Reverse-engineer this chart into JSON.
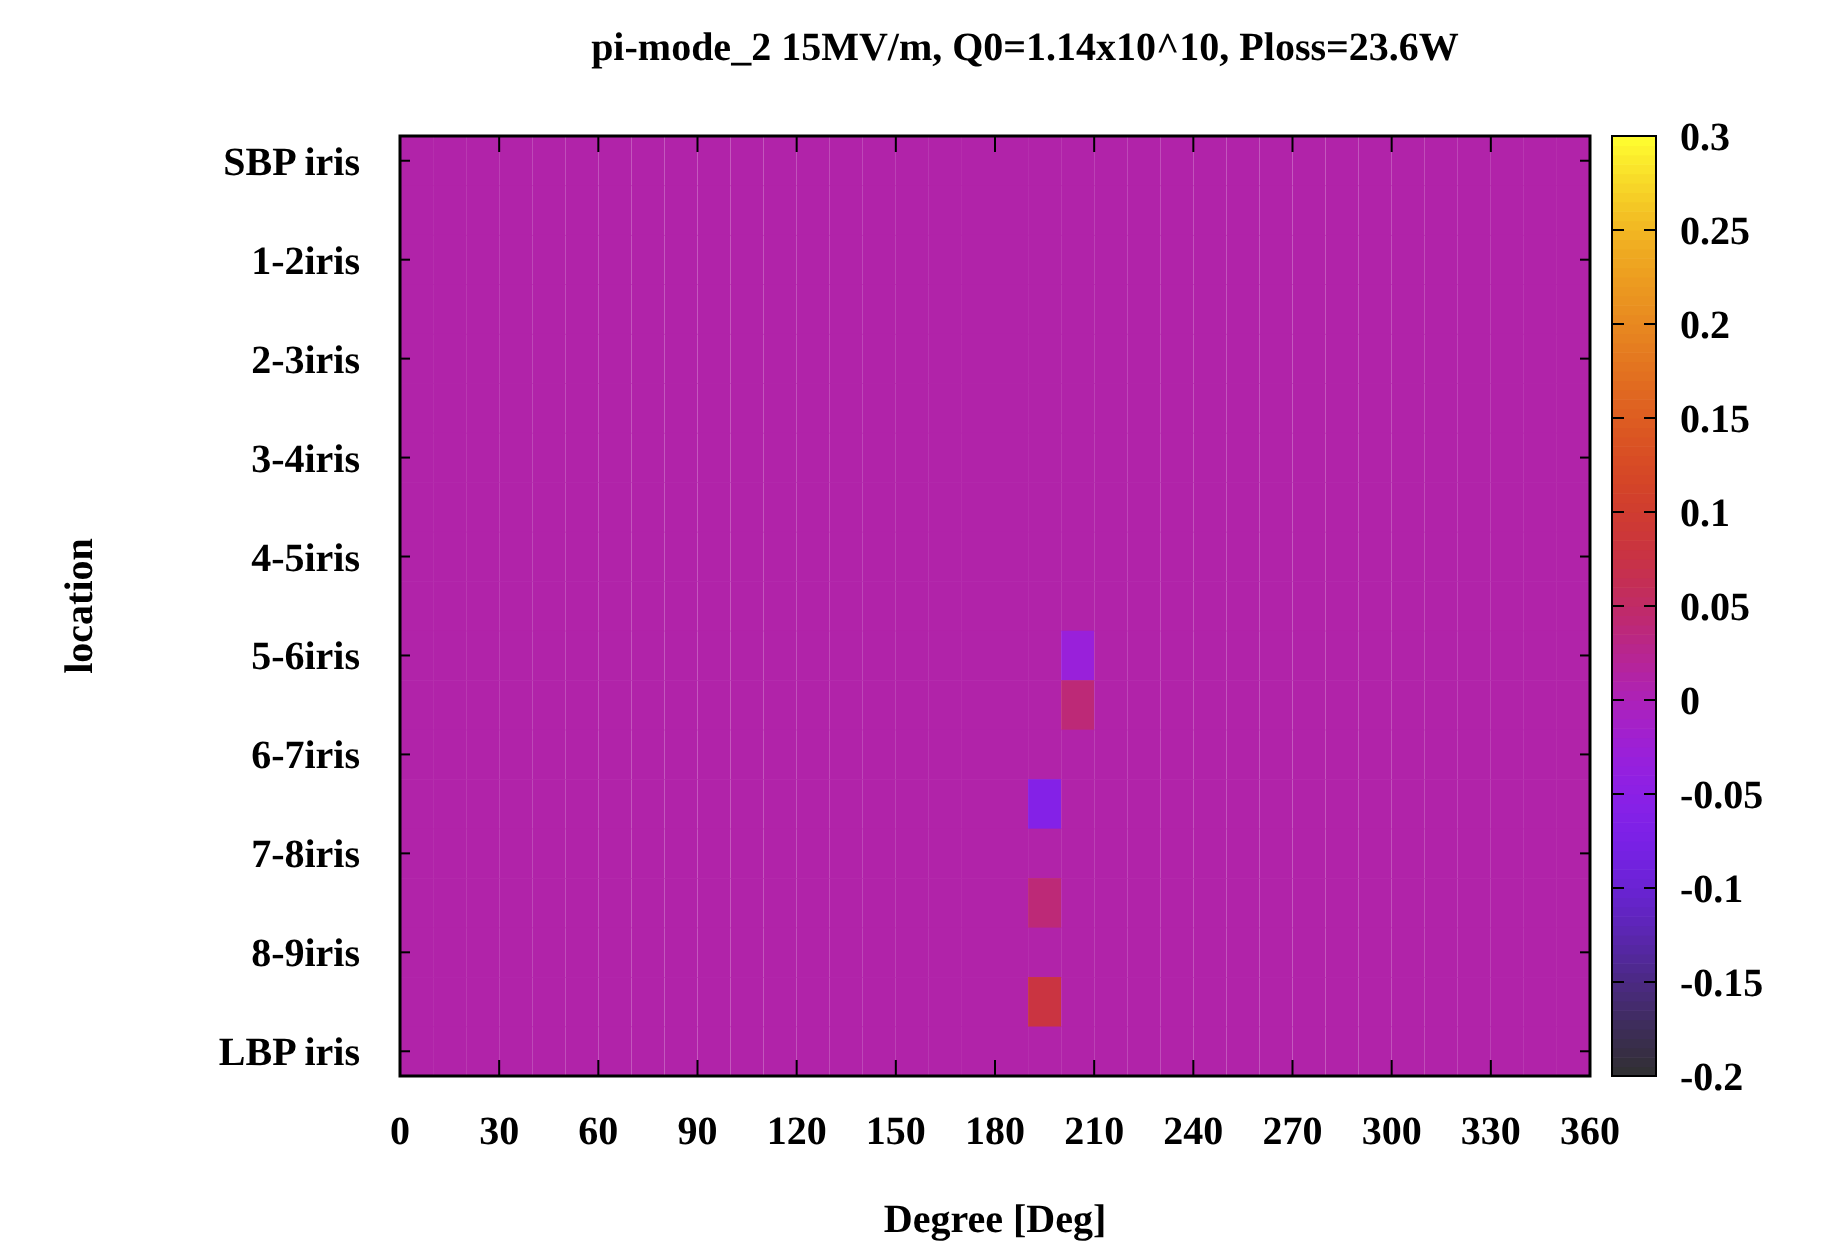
{
  "chart_data": {
    "type": "heatmap",
    "title": "pi-mode_2 15MV/m, Q0=1.14x10^10, Ploss=23.6W",
    "xlabel": "Degree [Deg]",
    "ylabel": "location",
    "x": [
      5,
      15,
      25,
      35,
      45,
      55,
      65,
      75,
      85,
      95,
      105,
      115,
      125,
      135,
      145,
      155,
      165,
      175,
      185,
      195,
      205,
      215,
      225,
      235,
      245,
      255,
      265,
      275,
      285,
      295,
      305,
      315,
      325,
      335,
      345,
      355
    ],
    "y_categories": [
      "SBP iris",
      null,
      "1-2iris",
      null,
      "2-3iris",
      null,
      "3-4iris",
      null,
      "4-5iris",
      null,
      "5-6iris",
      null,
      "6-7iris",
      null,
      "7-8iris",
      null,
      "8-9iris",
      null,
      "LBP iris"
    ],
    "cells": [
      [
        0.01,
        0.01,
        0.01,
        0.01,
        0.01,
        0.01,
        0.01,
        0.01,
        0.01,
        0.01,
        0.01,
        0.01,
        0.01,
        0.01,
        0.01,
        0.01,
        0.01,
        0.01,
        0.01,
        0.01,
        0.01,
        0.01,
        0.01,
        0.01,
        0.01,
        0.01,
        0.01,
        0.01,
        0.01,
        0.01,
        0.01,
        0.01,
        0.01,
        0.01,
        0.01,
        0.01
      ],
      [
        0.01,
        0.01,
        0.01,
        0.01,
        0.01,
        0.01,
        0.01,
        0.01,
        0.01,
        0.01,
        0.01,
        0.01,
        0.01,
        0.01,
        0.01,
        0.01,
        0.01,
        0.01,
        0.01,
        0.01,
        0.01,
        0.01,
        0.01,
        0.01,
        0.01,
        0.01,
        0.01,
        0.01,
        0.01,
        0.01,
        0.01,
        0.01,
        0.01,
        0.01,
        0.01,
        0.01
      ],
      [
        0.01,
        0.01,
        0.01,
        0.01,
        0.01,
        0.01,
        0.01,
        0.01,
        0.01,
        0.01,
        0.01,
        0.01,
        0.01,
        0.01,
        0.01,
        0.01,
        0.01,
        0.01,
        0.01,
        0.01,
        0.01,
        0.01,
        0.01,
        0.01,
        0.01,
        0.01,
        0.01,
        0.01,
        0.01,
        0.01,
        0.01,
        0.01,
        0.01,
        0.01,
        0.01,
        0.01
      ],
      [
        0.01,
        0.01,
        0.01,
        0.01,
        0.01,
        0.01,
        0.01,
        0.01,
        0.01,
        0.01,
        0.01,
        0.01,
        0.01,
        0.01,
        0.01,
        0.01,
        0.01,
        0.01,
        0.01,
        0.01,
        0.01,
        0.01,
        0.01,
        0.01,
        0.01,
        0.01,
        0.01,
        0.01,
        0.01,
        0.01,
        0.01,
        0.01,
        0.01,
        0.01,
        0.01,
        0.01
      ],
      [
        0.01,
        0.01,
        0.01,
        0.01,
        0.01,
        0.01,
        0.01,
        0.01,
        0.01,
        0.01,
        0.01,
        0.01,
        0.01,
        0.01,
        0.01,
        0.01,
        0.01,
        0.01,
        0.01,
        0.01,
        0.01,
        0.01,
        0.01,
        0.01,
        0.01,
        0.01,
        0.01,
        0.01,
        0.01,
        0.01,
        0.01,
        0.01,
        0.01,
        0.01,
        0.01,
        0.01
      ],
      [
        0.01,
        0.01,
        0.01,
        0.01,
        0.01,
        0.01,
        0.01,
        0.01,
        0.01,
        0.01,
        0.01,
        0.01,
        0.01,
        0.01,
        0.01,
        0.01,
        0.01,
        0.01,
        0.01,
        0.01,
        0.01,
        0.01,
        0.01,
        0.01,
        0.01,
        0.01,
        0.01,
        0.01,
        0.01,
        0.01,
        0.01,
        0.01,
        0.01,
        0.01,
        0.01,
        0.01
      ],
      [
        0.01,
        0.01,
        0.01,
        0.01,
        0.01,
        0.01,
        0.01,
        0.01,
        0.01,
        0.01,
        0.01,
        0.01,
        0.01,
        0.01,
        0.01,
        0.01,
        0.01,
        0.01,
        0.01,
        0.01,
        0.01,
        0.01,
        0.01,
        0.01,
        0.01,
        0.01,
        0.01,
        0.01,
        0.01,
        0.01,
        0.01,
        0.01,
        0.01,
        0.01,
        0.01,
        0.01
      ],
      [
        0.01,
        0.01,
        0.01,
        0.01,
        0.01,
        0.01,
        0.01,
        0.01,
        0.01,
        0.01,
        0.01,
        0.01,
        0.01,
        0.01,
        0.01,
        0.01,
        0.01,
        0.01,
        0.01,
        0.01,
        0.01,
        0.01,
        0.01,
        0.01,
        0.01,
        0.01,
        0.01,
        0.01,
        0.01,
        0.01,
        0.01,
        0.01,
        0.01,
        0.01,
        0.01,
        0.01
      ],
      [
        0.01,
        0.01,
        0.01,
        0.01,
        0.01,
        0.01,
        0.01,
        0.01,
        0.01,
        0.01,
        0.01,
        0.01,
        0.01,
        0.01,
        0.01,
        0.01,
        0.01,
        0.01,
        0.01,
        0.01,
        0.01,
        0.01,
        0.01,
        0.01,
        0.01,
        0.01,
        0.01,
        0.01,
        0.01,
        0.01,
        0.01,
        0.01,
        0.01,
        0.01,
        0.01,
        0.01
      ],
      [
        0.01,
        0.01,
        0.01,
        0.01,
        0.01,
        0.01,
        0.01,
        0.01,
        0.01,
        0.01,
        0.01,
        0.01,
        0.01,
        0.01,
        0.01,
        0.01,
        0.01,
        0.01,
        0.01,
        0.01,
        0.01,
        0.01,
        0.01,
        0.01,
        0.01,
        0.01,
        0.01,
        0.01,
        0.01,
        0.01,
        0.01,
        0.01,
        0.01,
        0.01,
        0.01,
        0.01
      ],
      [
        0.01,
        0.01,
        0.01,
        0.01,
        0.01,
        0.01,
        0.01,
        0.01,
        0.01,
        0.01,
        0.01,
        0.01,
        0.01,
        0.01,
        0.01,
        0.01,
        0.01,
        0.01,
        0.01,
        0.01,
        -0.03,
        0.01,
        0.01,
        0.01,
        0.01,
        0.01,
        0.01,
        0.01,
        0.01,
        0.01,
        0.01,
        0.01,
        0.01,
        0.01,
        0.01,
        0.01
      ],
      [
        0.01,
        0.01,
        0.01,
        0.01,
        0.01,
        0.01,
        0.01,
        0.01,
        0.01,
        0.01,
        0.01,
        0.01,
        0.01,
        0.01,
        0.01,
        0.01,
        0.01,
        0.01,
        0.01,
        0.01,
        0.04,
        0.01,
        0.01,
        0.01,
        0.01,
        0.01,
        0.01,
        0.01,
        0.01,
        0.01,
        0.01,
        0.01,
        0.01,
        0.01,
        0.01,
        0.01
      ],
      [
        0.01,
        0.01,
        0.01,
        0.01,
        0.01,
        0.01,
        0.01,
        0.01,
        0.01,
        0.01,
        0.01,
        0.01,
        0.01,
        0.01,
        0.01,
        0.01,
        0.01,
        0.01,
        0.01,
        0.01,
        0.01,
        0.01,
        0.01,
        0.01,
        0.01,
        0.01,
        0.01,
        0.01,
        0.01,
        0.01,
        0.01,
        0.01,
        0.01,
        0.01,
        0.01,
        0.01
      ],
      [
        0.01,
        0.01,
        0.01,
        0.01,
        0.01,
        0.01,
        0.01,
        0.01,
        0.01,
        0.01,
        0.01,
        0.01,
        0.01,
        0.01,
        0.01,
        0.01,
        0.01,
        0.01,
        0.01,
        -0.06,
        0.01,
        0.01,
        0.01,
        0.01,
        0.01,
        0.01,
        0.01,
        0.01,
        0.01,
        0.01,
        0.01,
        0.01,
        0.01,
        0.01,
        0.01,
        0.01
      ],
      [
        0.01,
        0.01,
        0.01,
        0.01,
        0.01,
        0.01,
        0.01,
        0.01,
        0.01,
        0.01,
        0.01,
        0.01,
        0.01,
        0.01,
        0.01,
        0.01,
        0.01,
        0.01,
        0.01,
        0.01,
        0.01,
        0.01,
        0.01,
        0.01,
        0.01,
        0.01,
        0.01,
        0.01,
        0.01,
        0.01,
        0.01,
        0.01,
        0.01,
        0.01,
        0.01,
        0.01
      ],
      [
        0.01,
        0.01,
        0.01,
        0.01,
        0.01,
        0.01,
        0.01,
        0.01,
        0.01,
        0.01,
        0.01,
        0.01,
        0.01,
        0.01,
        0.01,
        0.01,
        0.01,
        0.01,
        0.01,
        0.04,
        0.01,
        0.01,
        0.01,
        0.01,
        0.01,
        0.01,
        0.01,
        0.01,
        0.01,
        0.01,
        0.01,
        0.01,
        0.01,
        0.01,
        0.01,
        0.01
      ],
      [
        0.01,
        0.01,
        0.01,
        0.01,
        0.01,
        0.01,
        0.01,
        0.01,
        0.01,
        0.01,
        0.01,
        0.01,
        0.01,
        0.01,
        0.01,
        0.01,
        0.01,
        0.01,
        0.01,
        0.01,
        0.01,
        0.01,
        0.01,
        0.01,
        0.01,
        0.01,
        0.01,
        0.01,
        0.01,
        0.01,
        0.01,
        0.01,
        0.01,
        0.01,
        0.01,
        0.01
      ],
      [
        0.01,
        0.01,
        0.01,
        0.01,
        0.01,
        0.01,
        0.01,
        0.01,
        0.01,
        0.01,
        0.01,
        0.01,
        0.01,
        0.01,
        0.01,
        0.01,
        0.01,
        0.01,
        0.01,
        0.08,
        0.01,
        0.01,
        0.01,
        0.01,
        0.01,
        0.01,
        0.01,
        0.01,
        0.01,
        0.01,
        0.01,
        0.01,
        0.01,
        0.01,
        0.01,
        0.01
      ],
      [
        0.01,
        0.01,
        0.01,
        0.01,
        0.01,
        0.01,
        0.01,
        0.01,
        0.01,
        0.01,
        0.01,
        0.01,
        0.01,
        0.01,
        0.01,
        0.01,
        0.01,
        0.01,
        0.01,
        0.01,
        0.01,
        0.01,
        0.01,
        0.01,
        0.01,
        0.01,
        0.01,
        0.01,
        0.01,
        0.01,
        0.01,
        0.01,
        0.01,
        0.01,
        0.01,
        0.01
      ]
    ],
    "xlim": [
      0,
      360
    ],
    "xticks": [
      0,
      30,
      60,
      90,
      120,
      150,
      180,
      210,
      240,
      270,
      300,
      330,
      360
    ],
    "clim": [
      -0.2,
      0.3
    ],
    "cticks": [
      -0.2,
      -0.15,
      -0.1,
      -0.05,
      0,
      0.05,
      0.1,
      0.15,
      0.2,
      0.25,
      0.3
    ]
  }
}
